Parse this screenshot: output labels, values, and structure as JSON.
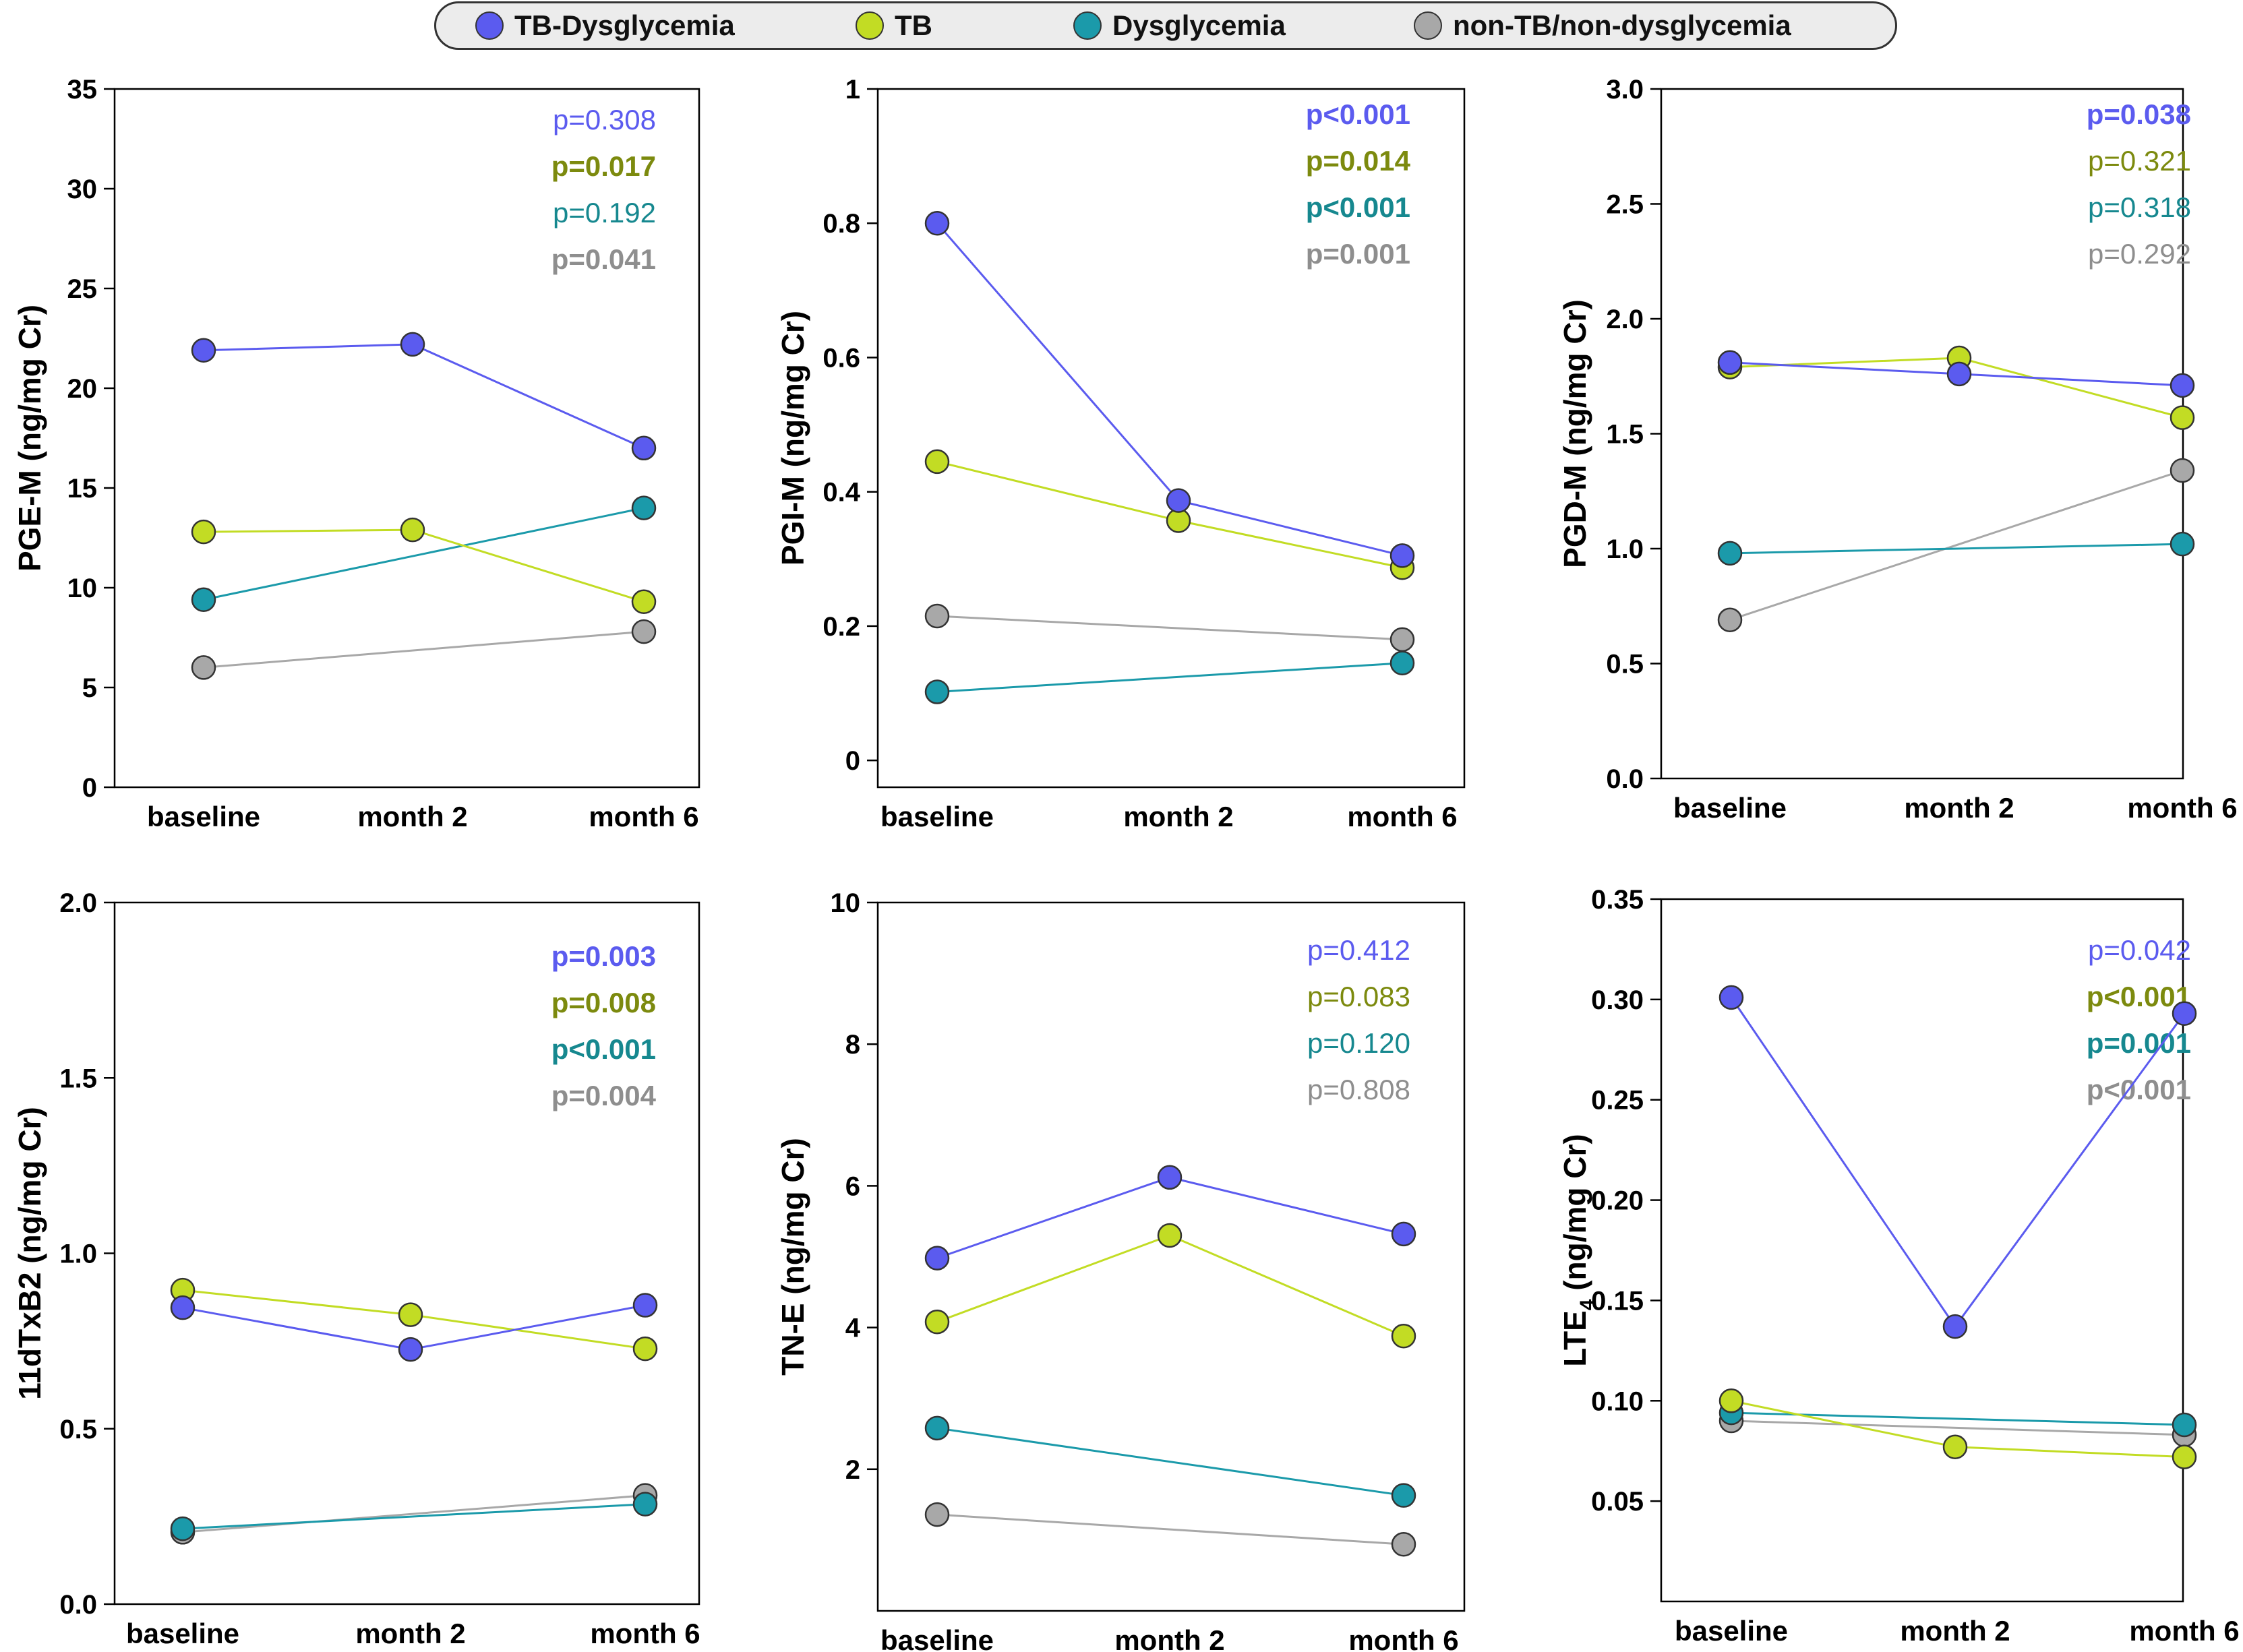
{
  "legend": [
    {
      "name": "TB-Dysglycemia",
      "color": "#5b5bef"
    },
    {
      "name": "TB",
      "color": "#c2dc24"
    },
    {
      "name": "Dysglycemia",
      "color": "#1b9aaa"
    },
    {
      "name": "non-TB/non-dysglycemia",
      "color": "#a8a8a8"
    }
  ],
  "pvalue_colors": [
    "#5b5bef",
    "#7c8a0e",
    "#16888f",
    "#8e8e8e"
  ],
  "chart_data": [
    {
      "type": "line",
      "ylabel": "PGE-M  (ng/mg Cr)",
      "categories": [
        "baseline",
        "month 2",
        "month 6"
      ],
      "ylim": [
        0,
        35
      ],
      "yticks": [
        "0",
        "5",
        "10",
        "15",
        "20",
        "25",
        "30",
        "35"
      ],
      "ytick_values": [
        0,
        5,
        10,
        15,
        20,
        25,
        30,
        35
      ],
      "series": [
        {
          "name": "non-TB/non-dysglycemia",
          "values": [
            6.0,
            null,
            7.8
          ]
        },
        {
          "name": "Dysglycemia",
          "values": [
            9.4,
            null,
            14.0
          ]
        },
        {
          "name": "TB",
          "values": [
            12.8,
            12.9,
            9.3
          ]
        },
        {
          "name": "TB-Dysglycemia",
          "values": [
            21.9,
            22.2,
            17.0
          ]
        }
      ],
      "pvalues": [
        {
          "text": "p=0.308",
          "bold": false
        },
        {
          "text": "p=0.017",
          "bold": true
        },
        {
          "text": "p=0.192",
          "bold": false
        },
        {
          "text": "p=0.041",
          "bold": true
        }
      ]
    },
    {
      "type": "line",
      "ylabel": "PGI-M  (ng/mg Cr)",
      "categories": [
        "baseline",
        "month 2",
        "month 6"
      ],
      "ylim": [
        -0.04,
        1.0
      ],
      "yticks": [
        "0",
        "0.2",
        "0.4",
        "0.6",
        "0.8",
        "1"
      ],
      "ytick_values": [
        0,
        0.2,
        0.4,
        0.6,
        0.8,
        1.0
      ],
      "series": [
        {
          "name": "non-TB/non-dysglycemia",
          "values": [
            0.215,
            null,
            0.18
          ]
        },
        {
          "name": "Dysglycemia",
          "values": [
            0.102,
            null,
            0.145
          ]
        },
        {
          "name": "TB",
          "values": [
            0.445,
            0.357,
            0.287
          ]
        },
        {
          "name": "TB-Dysglycemia",
          "values": [
            0.8,
            0.387,
            0.305
          ]
        }
      ],
      "pvalues": [
        {
          "text": "p<0.001",
          "bold": true
        },
        {
          "text": "p=0.014",
          "bold": true
        },
        {
          "text": "p<0.001",
          "bold": true
        },
        {
          "text": "p=0.001",
          "bold": true
        }
      ]
    },
    {
      "type": "line",
      "ylabel": "PGD-M  (ng/mg Cr)",
      "categories": [
        "baseline",
        "month 2",
        "month 6"
      ],
      "ylim": [
        0,
        3.0
      ],
      "yticks": [
        "0.0",
        "0.5",
        "1.0",
        "1.5",
        "2.0",
        "2.5",
        "3.0"
      ],
      "ytick_values": [
        0,
        0.5,
        1.0,
        1.5,
        2.0,
        2.5,
        3.0
      ],
      "series": [
        {
          "name": "non-TB/non-dysglycemia",
          "values": [
            0.69,
            null,
            1.34
          ]
        },
        {
          "name": "Dysglycemia",
          "values": [
            0.98,
            null,
            1.02
          ]
        },
        {
          "name": "TB",
          "values": [
            1.79,
            1.83,
            1.57
          ]
        },
        {
          "name": "TB-Dysglycemia",
          "values": [
            1.81,
            1.76,
            1.71
          ]
        }
      ],
      "pvalues": [
        {
          "text": "p=0.038",
          "bold": true
        },
        {
          "text": "p=0.321",
          "bold": false
        },
        {
          "text": "p=0.318",
          "bold": false
        },
        {
          "text": "p=0.292",
          "bold": false
        }
      ]
    },
    {
      "type": "line",
      "ylabel": "11dTxB2  (ng/mg Cr)",
      "categories": [
        "baseline",
        "month 2",
        "month 6"
      ],
      "ylim": [
        0,
        2.0
      ],
      "yticks": [
        "0.0",
        "0.5",
        "1.0",
        "1.5",
        "2.0"
      ],
      "ytick_values": [
        0,
        0.5,
        1.0,
        1.5,
        2.0
      ],
      "series": [
        {
          "name": "non-TB/non-dysglycemia",
          "values": [
            0.205,
            null,
            0.31
          ]
        },
        {
          "name": "Dysglycemia",
          "values": [
            0.215,
            null,
            0.285
          ]
        },
        {
          "name": "TB",
          "values": [
            0.895,
            0.825,
            0.728
          ]
        },
        {
          "name": "TB-Dysglycemia",
          "values": [
            0.845,
            0.726,
            0.852
          ]
        }
      ],
      "pvalues": [
        {
          "text": "p=0.003",
          "bold": true
        },
        {
          "text": "p=0.008",
          "bold": true
        },
        {
          "text": "p<0.001",
          "bold": true
        },
        {
          "text": "p=0.004",
          "bold": true
        }
      ]
    },
    {
      "type": "line",
      "ylabel": "TN-E  (ng/mg Cr)",
      "categories": [
        "baseline",
        "month 2",
        "month 6"
      ],
      "ylim": [
        0,
        10
      ],
      "yticks": [
        "2",
        "4",
        "6",
        "8",
        "10"
      ],
      "ytick_values": [
        2,
        4,
        6,
        8,
        10
      ],
      "series": [
        {
          "name": "non-TB/non-dysglycemia",
          "values": [
            1.36,
            null,
            0.94
          ]
        },
        {
          "name": "Dysglycemia",
          "values": [
            2.58,
            null,
            1.63
          ]
        },
        {
          "name": "TB",
          "values": [
            4.08,
            5.3,
            3.88
          ]
        },
        {
          "name": "TB-Dysglycemia",
          "values": [
            4.98,
            6.12,
            5.32
          ]
        }
      ],
      "pvalues": [
        {
          "text": "p=0.412",
          "bold": false
        },
        {
          "text": "p=0.083",
          "bold": false
        },
        {
          "text": "p=0.120",
          "bold": false
        },
        {
          "text": "p=0.808",
          "bold": false
        }
      ]
    },
    {
      "type": "line",
      "ylabel": "LTE",
      "ylabel_sub": "4",
      "ylabel_unit": "  (ng/mg Cr)",
      "categories": [
        "baseline",
        "month 2",
        "month 6"
      ],
      "ylim": [
        0,
        0.35
      ],
      "yticks": [
        "0.05",
        "0.10",
        "0.15",
        "0.20",
        "0.25",
        "0.30",
        "0.35"
      ],
      "ytick_values": [
        0.05,
        0.1,
        0.15,
        0.2,
        0.25,
        0.3,
        0.35
      ],
      "series": [
        {
          "name": "non-TB/non-dysglycemia",
          "values": [
            0.09,
            null,
            0.083
          ]
        },
        {
          "name": "Dysglycemia",
          "values": [
            0.094,
            null,
            0.088
          ]
        },
        {
          "name": "TB",
          "values": [
            0.1,
            0.077,
            0.072
          ]
        },
        {
          "name": "TB-Dysglycemia",
          "values": [
            0.301,
            0.137,
            0.293
          ]
        }
      ],
      "pvalues": [
        {
          "text": "p=0.042",
          "bold": false
        },
        {
          "text": "p<0.001",
          "bold": true
        },
        {
          "text": "p=0.001",
          "bold": true
        },
        {
          "text": "p<0.001",
          "bold": true
        }
      ]
    }
  ]
}
